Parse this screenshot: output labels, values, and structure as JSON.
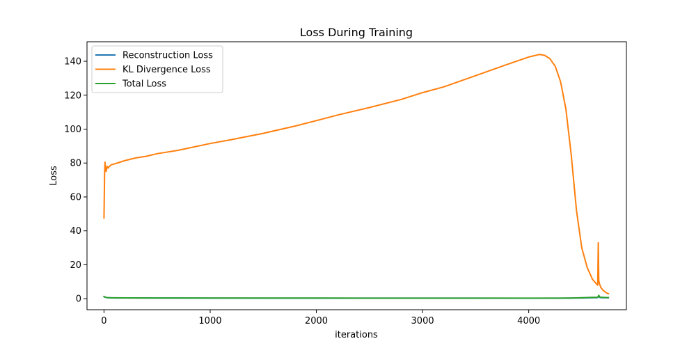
{
  "chart_data": {
    "type": "line",
    "title": "Loss During Training",
    "xlabel": "iterations",
    "ylabel": "Loss",
    "xlim": [
      -160,
      4920
    ],
    "ylim": [
      -6.5,
      151.5
    ],
    "xticks": [
      0,
      1000,
      2000,
      3000,
      4000
    ],
    "yticks": [
      0,
      20,
      40,
      60,
      80,
      100,
      120,
      140
    ],
    "grid": false,
    "legend_position": "upper left",
    "series": [
      {
        "name": "Reconstruction Loss",
        "color": "#1f77b4",
        "x": [
          0,
          10,
          30,
          60,
          100,
          200,
          500,
          1000,
          1500,
          2000,
          2500,
          3000,
          3500,
          4000,
          4300,
          4400,
          4500,
          4600,
          4650,
          4660,
          4670,
          4700,
          4750
        ],
        "y": [
          1.2,
          0.9,
          0.6,
          0.5,
          0.45,
          0.42,
          0.38,
          0.35,
          0.33,
          0.32,
          0.31,
          0.3,
          0.3,
          0.29,
          0.3,
          0.35,
          0.45,
          0.6,
          0.65,
          1.5,
          0.7,
          0.6,
          0.55
        ]
      },
      {
        "name": "KL Divergence Loss",
        "color": "#ff7f0e",
        "x": [
          0,
          3,
          6,
          10,
          15,
          20,
          25,
          30,
          40,
          50,
          70,
          100,
          150,
          200,
          300,
          400,
          500,
          700,
          1000,
          1200,
          1500,
          1800,
          2000,
          2200,
          2500,
          2800,
          3000,
          3200,
          3500,
          3800,
          4000,
          4100,
          4150,
          4200,
          4250,
          4300,
          4350,
          4400,
          4450,
          4500,
          4550,
          4600,
          4640,
          4650,
          4655,
          4660,
          4665,
          4680,
          4700,
          4720,
          4740,
          4750
        ],
        "y": [
          47.5,
          62,
          74,
          80.5,
          77,
          75,
          76.5,
          78,
          77,
          78,
          79,
          79.5,
          80.5,
          81.5,
          83,
          84,
          85.5,
          87.5,
          91.5,
          93.8,
          97.5,
          101.8,
          105,
          108.3,
          112.7,
          117.5,
          121.5,
          124.9,
          131.5,
          138.2,
          142.5,
          144,
          143.5,
          141.5,
          137,
          128,
          112,
          85,
          52,
          30,
          18.5,
          11.5,
          8.5,
          8,
          33,
          11,
          9,
          6.5,
          5,
          4,
          3.2,
          3
        ]
      },
      {
        "name": "Total Loss",
        "color": "#2ca02c",
        "x": [
          0,
          10,
          30,
          60,
          100,
          200,
          500,
          1000,
          1500,
          2000,
          2500,
          3000,
          3500,
          4000,
          4300,
          4400,
          4500,
          4600,
          4650,
          4660,
          4670,
          4700,
          4750
        ],
        "y": [
          1.3,
          0.95,
          0.65,
          0.55,
          0.5,
          0.47,
          0.42,
          0.39,
          0.36,
          0.34,
          0.33,
          0.32,
          0.31,
          0.3,
          0.32,
          0.4,
          0.55,
          0.75,
          0.85,
          2.0,
          0.9,
          0.75,
          0.65
        ]
      }
    ]
  }
}
